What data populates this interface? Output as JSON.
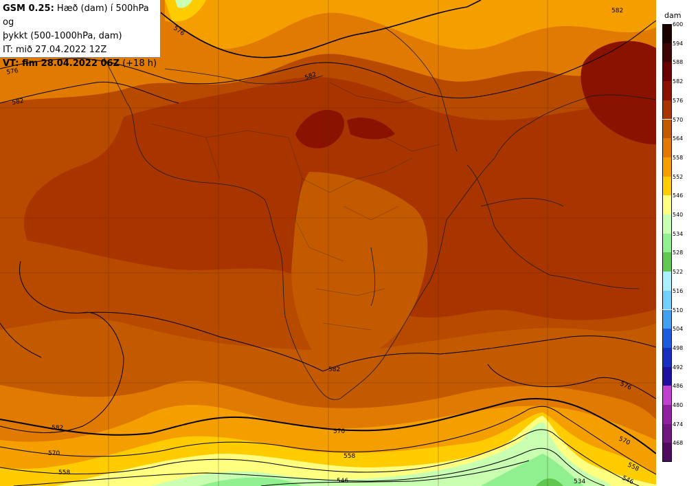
{
  "title": {
    "model": "GSM 0.25:",
    "desc_line1": "Hæð (dam) í 500hPa og",
    "desc_line2": "þykkt (500-1000hPa, dam)",
    "it": "IT: mið 27.04.2022 12Z",
    "vt_prefix": "VT: fim 28.04.2022 06Z",
    "vt_suffix": "(+18 h)"
  },
  "colorbar": {
    "unit": "dam",
    "levels": [
      {
        "label": "600",
        "color": "#1c0000"
      },
      {
        "label": "594",
        "color": "#3e0505"
      },
      {
        "label": "588",
        "color": "#6a0000"
      },
      {
        "label": "582",
        "color": "#8a1200"
      },
      {
        "label": "576",
        "color": "#a83400"
      },
      {
        "label": "570",
        "color": "#c45a00"
      },
      {
        "label": "564",
        "color": "#e07a00"
      },
      {
        "label": "558",
        "color": "#f59e00"
      },
      {
        "label": "552",
        "color": "#ffcc00"
      },
      {
        "label": "546",
        "color": "#ffff80"
      },
      {
        "label": "540",
        "color": "#c8ffb0"
      },
      {
        "label": "534",
        "color": "#90f090"
      },
      {
        "label": "528",
        "color": "#60c850"
      },
      {
        "label": "522",
        "color": "#a8f0ff"
      },
      {
        "label": "516",
        "color": "#70d0ff"
      },
      {
        "label": "510",
        "color": "#3fa0f0"
      },
      {
        "label": "504",
        "color": "#1a5ce0"
      },
      {
        "label": "498",
        "color": "#1830c0"
      },
      {
        "label": "492",
        "color": "#2010a0"
      },
      {
        "label": "486",
        "color": "#c040d0"
      },
      {
        "label": "480",
        "color": "#9020a0"
      },
      {
        "label": "474",
        "color": "#701880"
      },
      {
        "label": "468",
        "color": "#500a60"
      }
    ]
  },
  "contour_labels": [
    "576",
    "582",
    "582",
    "582",
    "576",
    "582",
    "582",
    "570",
    "576",
    "558",
    "570",
    "558",
    "546",
    "534",
    "570",
    "558",
    "546"
  ]
}
